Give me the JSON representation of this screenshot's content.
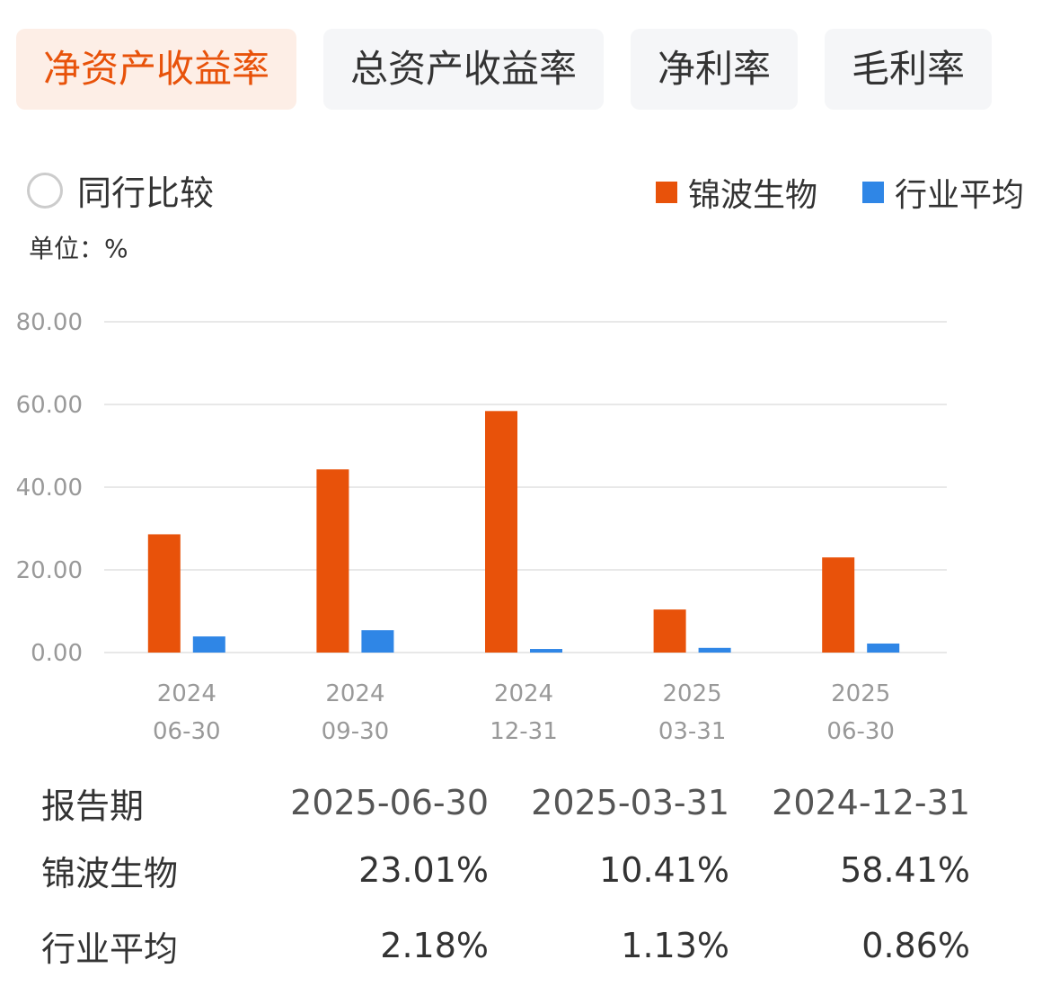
{
  "tabs": [
    {
      "label": "净资产收益率",
      "active": true
    },
    {
      "label": "总资产收益率",
      "active": false
    },
    {
      "label": "净利率",
      "active": false
    },
    {
      "label": "毛利率",
      "active": false
    }
  ],
  "compare_label": "同行比较",
  "unit_label": "单位：%",
  "colors": {
    "company": "#e8520a",
    "industry": "#2f86e6",
    "accent": "#e8520a"
  },
  "chart_data": {
    "type": "bar",
    "categories": [
      {
        "year": "2024",
        "date": "06-30"
      },
      {
        "year": "2024",
        "date": "09-30"
      },
      {
        "year": "2024",
        "date": "12-31"
      },
      {
        "year": "2025",
        "date": "03-31"
      },
      {
        "year": "2025",
        "date": "06-30"
      }
    ],
    "series": [
      {
        "name": "锦波生物",
        "values": [
          28.6,
          44.3,
          58.41,
          10.41,
          23.01
        ]
      },
      {
        "name": "行业平均",
        "values": [
          3.9,
          5.4,
          0.86,
          1.13,
          2.18
        ]
      }
    ],
    "yticks": [
      "0.00",
      "20.00",
      "40.00",
      "60.00",
      "80.00"
    ],
    "ylim": [
      0,
      80
    ],
    "grid": true,
    "legend_position": "top-right"
  },
  "table": {
    "header": {
      "label": "报告期",
      "values": [
        "2025-06-30",
        "2025-03-31",
        "2024-12-31"
      ]
    },
    "rows": [
      {
        "label": "锦波生物",
        "values": [
          "23.01%",
          "10.41%",
          "58.41%"
        ]
      },
      {
        "label": "行业平均",
        "values": [
          "2.18%",
          "1.13%",
          "0.86%"
        ]
      }
    ]
  }
}
